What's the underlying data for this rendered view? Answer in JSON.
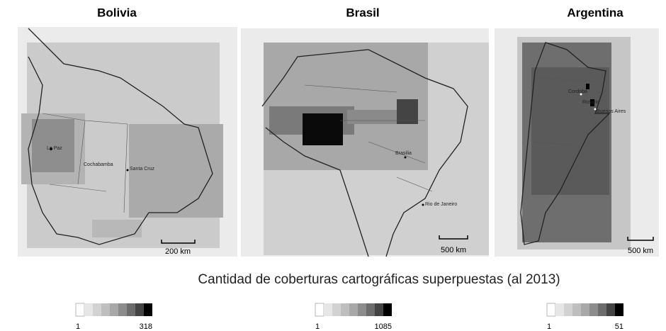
{
  "panels": [
    {
      "title": "Bolivia",
      "cities": [
        "La Paz",
        "Cochabamba",
        "Santa Cruz"
      ],
      "scale": "200 km",
      "legend": {
        "min": 1,
        "max": 318
      }
    },
    {
      "title": "Brasil",
      "cities": [
        "Brasilia",
        "Rio de Janeiro"
      ],
      "scale": "500 km",
      "legend": {
        "min": 1,
        "max": 1085
      }
    },
    {
      "title": "Argentina",
      "cities": [
        "Cordoba",
        "Rosario",
        "Buenos Aires"
      ],
      "scale": "500 km",
      "legend": {
        "min": 1,
        "max": 51
      }
    }
  ],
  "caption": "Cantidad de coberturas cartográficas superpuestas (al 2013)"
}
